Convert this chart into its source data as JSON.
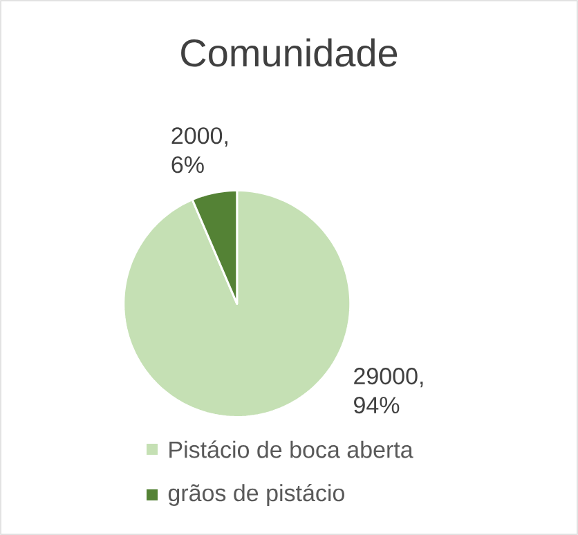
{
  "chart_data": {
    "type": "pie",
    "title": "Comunidade",
    "categories": [
      "Pistácio de boca aberta",
      "grãos de pistácio"
    ],
    "values": [
      29000,
      2000
    ],
    "colors": [
      "#c5e0b4",
      "#548235"
    ],
    "value_labels": [
      "29000, 94%",
      "2000, 6%"
    ],
    "legend": "bottom"
  }
}
